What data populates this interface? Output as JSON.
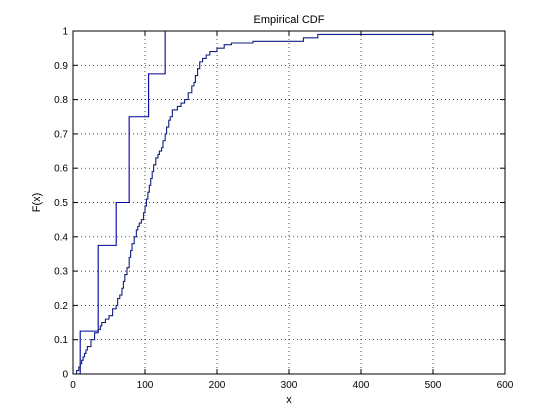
{
  "chart_data": {
    "type": "line",
    "title": "Empirical CDF",
    "xlabel": "x",
    "ylabel": "F(x)",
    "xlim": [
      0,
      600
    ],
    "ylim": [
      0,
      1
    ],
    "xticks": [
      0,
      100,
      200,
      300,
      400,
      500,
      600
    ],
    "yticks": [
      0,
      0.1,
      0.2,
      0.3,
      0.4,
      0.5,
      0.6,
      0.7,
      0.8,
      0.9,
      1
    ],
    "grid": true,
    "step": true,
    "series": [
      {
        "color": "#0000a0",
        "x": [
          0,
          10,
          15,
          35,
          60,
          78,
          105,
          128
        ],
        "y": [
          0,
          0.125,
          0.125,
          0.375,
          0.5,
          0.75,
          0.875,
          1.0
        ]
      },
      {
        "color": "#102080",
        "x": [
          0,
          5,
          8,
          10,
          12,
          14,
          16,
          18,
          20,
          25,
          30,
          35,
          38,
          40,
          45,
          50,
          55,
          60,
          62,
          65,
          68,
          70,
          72,
          75,
          78,
          80,
          82,
          85,
          88,
          90,
          92,
          95,
          98,
          100,
          102,
          104,
          106,
          108,
          110,
          112,
          115,
          118,
          120,
          123,
          125,
          128,
          130,
          133,
          135,
          138,
          140,
          145,
          150,
          155,
          160,
          165,
          168,
          170,
          173,
          176,
          180,
          185,
          190,
          200,
          210,
          220,
          250,
          320,
          340,
          500
        ],
        "y": [
          0,
          0.01,
          0.02,
          0.03,
          0.04,
          0.05,
          0.06,
          0.07,
          0.08,
          0.1,
          0.12,
          0.13,
          0.14,
          0.15,
          0.16,
          0.17,
          0.19,
          0.2,
          0.22,
          0.23,
          0.25,
          0.27,
          0.29,
          0.31,
          0.34,
          0.36,
          0.38,
          0.4,
          0.42,
          0.43,
          0.44,
          0.45,
          0.47,
          0.49,
          0.51,
          0.53,
          0.55,
          0.57,
          0.59,
          0.61,
          0.63,
          0.64,
          0.65,
          0.66,
          0.68,
          0.7,
          0.72,
          0.74,
          0.75,
          0.77,
          0.77,
          0.78,
          0.79,
          0.8,
          0.82,
          0.84,
          0.85,
          0.87,
          0.89,
          0.91,
          0.92,
          0.93,
          0.94,
          0.95,
          0.96,
          0.965,
          0.97,
          0.98,
          0.99,
          0.99
        ]
      }
    ]
  }
}
